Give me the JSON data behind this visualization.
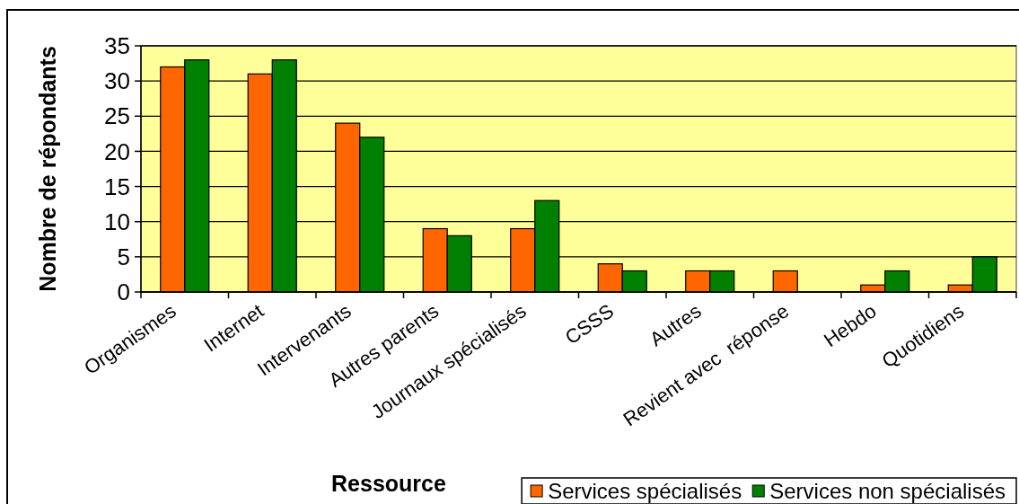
{
  "chart_data": {
    "type": "bar",
    "xlabel": "Ressource",
    "ylabel": "Nombre de répondants",
    "categories": [
      "Organismes",
      "Internet",
      "Intervenants",
      "Autres parents",
      "Journaux spécialisés",
      "CSSS",
      "Autres",
      "Revient avec  réponse",
      "Hebdo",
      "Quotidiens"
    ],
    "series": [
      {
        "name": "Services spécialisés",
        "color": "#ff6600",
        "values": [
          32,
          31,
          24,
          9,
          9,
          4,
          3,
          3,
          1,
          1
        ]
      },
      {
        "name": "Services non spécialisés",
        "color": "#008000",
        "values": [
          33,
          33,
          22,
          8,
          13,
          3,
          3,
          0,
          3,
          5
        ]
      }
    ],
    "ylim": [
      0,
      35
    ],
    "yticks": [
      0,
      5,
      10,
      15,
      20,
      25,
      30,
      35
    ],
    "grid": "y",
    "legend": "bottom right"
  }
}
